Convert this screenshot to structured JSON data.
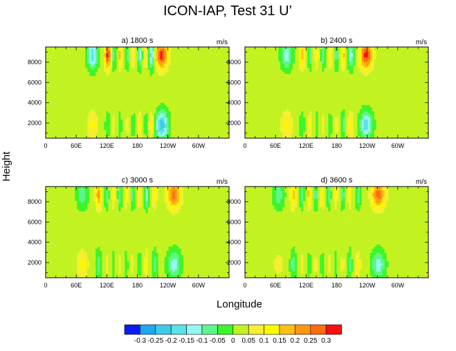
{
  "figure": {
    "title": "ICON-IAP, Test 31 U’",
    "ylabel": "Height",
    "xlabel": "Longitude"
  },
  "chart_data": [
    {
      "type": "heatmap",
      "panel": "a",
      "title": "a) 1800 s",
      "units": "m/s",
      "x_ticks": [
        "0",
        "60E",
        "120E",
        "180",
        "120W",
        "60W"
      ],
      "y_ticks": [
        "2000",
        "4000",
        "6000",
        "8000"
      ],
      "ylim": [
        500,
        9500
      ],
      "features": [
        {
          "lon": 92,
          "top": -0.2,
          "bottom": 0.1,
          "width": 10
        },
        {
          "lon": 122,
          "top": 0.3,
          "bottom": -0.05,
          "width": 6
        },
        {
          "lon": 134,
          "top": -0.1,
          "bottom": 0.05,
          "width": 4
        },
        {
          "lon": 146,
          "top": 0.15,
          "bottom": -0.05,
          "width": 4
        },
        {
          "lon": 160,
          "top": -0.1,
          "bottom": 0.05,
          "width": 4
        },
        {
          "lon": 172,
          "top": 0.1,
          "bottom": -0.05,
          "width": 4
        },
        {
          "lon": 185,
          "top": -0.15,
          "bottom": 0.1,
          "width": 4
        },
        {
          "lon": 197,
          "top": 0.1,
          "bottom": -0.05,
          "width": 4
        },
        {
          "lon": 208,
          "top": -0.2,
          "bottom": 0.1,
          "width": 6
        },
        {
          "lon": 228,
          "top": 0.3,
          "bottom": -0.25,
          "width": 12
        }
      ]
    },
    {
      "type": "heatmap",
      "panel": "b",
      "title": "b) 2400 s",
      "units": "m/s",
      "x_ticks": [
        "0",
        "60E",
        "120E",
        "180",
        "120W",
        "60W"
      ],
      "y_ticks": [
        "2000",
        "4000",
        "6000",
        "8000"
      ],
      "ylim": [
        500,
        9500
      ],
      "features": [
        {
          "lon": 82,
          "top": -0.15,
          "bottom": 0.1,
          "width": 11
        },
        {
          "lon": 112,
          "top": 0.15,
          "bottom": -0.05,
          "width": 6
        },
        {
          "lon": 128,
          "top": -0.1,
          "bottom": 0.1,
          "width": 4
        },
        {
          "lon": 141,
          "top": 0.1,
          "bottom": -0.05,
          "width": 4
        },
        {
          "lon": 154,
          "top": -0.1,
          "bottom": 0.05,
          "width": 4
        },
        {
          "lon": 167,
          "top": 0.1,
          "bottom": -0.05,
          "width": 4
        },
        {
          "lon": 180,
          "top": -0.1,
          "bottom": 0.05,
          "width": 4
        },
        {
          "lon": 193,
          "top": 0.15,
          "bottom": -0.1,
          "width": 4
        },
        {
          "lon": 208,
          "top": -0.15,
          "bottom": 0.1,
          "width": 6
        },
        {
          "lon": 238,
          "top": 0.3,
          "bottom": -0.2,
          "width": 12
        }
      ]
    },
    {
      "type": "heatmap",
      "panel": "c",
      "title": "c) 3000 s",
      "units": "m/s",
      "x_ticks": [
        "0",
        "60E",
        "120E",
        "180",
        "120W",
        "60W"
      ],
      "y_ticks": [
        "2000",
        "4000",
        "6000",
        "8000"
      ],
      "ylim": [
        500,
        9500
      ],
      "features": [
        {
          "lon": 72,
          "top": -0.1,
          "bottom": 0.1,
          "width": 11
        },
        {
          "lon": 104,
          "top": 0.2,
          "bottom": -0.1,
          "width": 6
        },
        {
          "lon": 120,
          "top": -0.1,
          "bottom": 0.05,
          "width": 4
        },
        {
          "lon": 133,
          "top": 0.1,
          "bottom": -0.05,
          "width": 4
        },
        {
          "lon": 146,
          "top": -0.1,
          "bottom": 0.05,
          "width": 4
        },
        {
          "lon": 158,
          "top": 0.1,
          "bottom": -0.05,
          "width": 4
        },
        {
          "lon": 171,
          "top": -0.1,
          "bottom": 0.05,
          "width": 4
        },
        {
          "lon": 184,
          "top": 0.1,
          "bottom": -0.05,
          "width": 4
        },
        {
          "lon": 198,
          "top": -0.15,
          "bottom": 0.1,
          "width": 4
        },
        {
          "lon": 214,
          "top": 0.1,
          "bottom": -0.1,
          "width": 5
        },
        {
          "lon": 252,
          "top": 0.25,
          "bottom": -0.15,
          "width": 13
        }
      ]
    },
    {
      "type": "heatmap",
      "panel": "d",
      "title": "d) 3600 s",
      "units": "m/s",
      "x_ticks": [
        "0",
        "60E",
        "120E",
        "180",
        "120W",
        "60W"
      ],
      "y_ticks": [
        "2000",
        "4000",
        "6000",
        "8000"
      ],
      "ylim": [
        500,
        9500
      ],
      "features": [
        {
          "lon": 66,
          "top": -0.1,
          "bottom": 0.05,
          "width": 11
        },
        {
          "lon": 95,
          "top": 0.15,
          "bottom": -0.1,
          "width": 6
        },
        {
          "lon": 112,
          "top": -0.1,
          "bottom": 0.05,
          "width": 4
        },
        {
          "lon": 126,
          "top": 0.15,
          "bottom": -0.05,
          "width": 4
        },
        {
          "lon": 139,
          "top": -0.1,
          "bottom": 0.05,
          "width": 4
        },
        {
          "lon": 152,
          "top": 0.1,
          "bottom": -0.05,
          "width": 4
        },
        {
          "lon": 165,
          "top": -0.1,
          "bottom": 0.05,
          "width": 4
        },
        {
          "lon": 178,
          "top": 0.1,
          "bottom": -0.05,
          "width": 4
        },
        {
          "lon": 192,
          "top": -0.1,
          "bottom": 0.05,
          "width": 4
        },
        {
          "lon": 206,
          "top": 0.1,
          "bottom": -0.1,
          "width": 4
        },
        {
          "lon": 222,
          "top": -0.1,
          "bottom": 0.1,
          "width": 5
        },
        {
          "lon": 262,
          "top": 0.25,
          "bottom": -0.15,
          "width": 13
        }
      ]
    }
  ],
  "colorbar": {
    "levels": [
      "-0.3",
      "-0.25",
      "-0.2",
      "-0.15",
      "-0.1",
      "-0.05",
      "0",
      "0.05",
      "0.1",
      "0.15",
      "0.2",
      "0.25",
      "0.3"
    ],
    "colors": [
      "#0a1cf5",
      "#1fa7f0",
      "#3ecbe8",
      "#5be1e8",
      "#96f7f2",
      "#5ff58c",
      "#3ef52b",
      "#c2f321",
      "#f6ee32",
      "#fdf800",
      "#fcbf16",
      "#fd9813",
      "#fb6d0d",
      "#fa0e10"
    ]
  }
}
